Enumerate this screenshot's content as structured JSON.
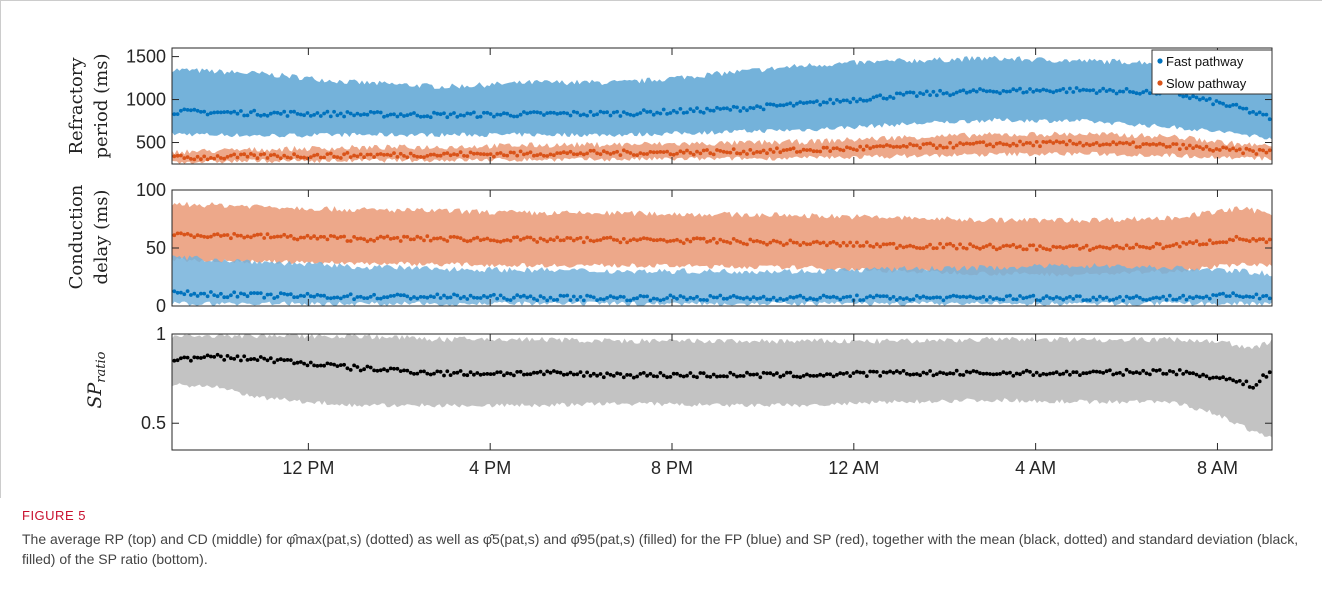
{
  "figure": {
    "label": "FIGURE 5",
    "caption": "The average RP (top) and CD (middle) for φ̂max(pat,s) (dotted) as well as φ̂5(pat,s) and φ̂95(pat,s) (filled) for the FP (blue) and SP (red), together with the mean (black, dotted) and standard deviation (black, filled) of the SP ratio (bottom)."
  },
  "chart_data": [
    {
      "type": "scatter",
      "ylabel": "Refractory period (ms)",
      "ylim": [
        250,
        1600
      ],
      "yticks": [
        500,
        1000,
        1500
      ],
      "xlim": [
        9,
        33.2
      ],
      "x_unit": "hours",
      "xticks": [
        12,
        16,
        20,
        24,
        28,
        32
      ],
      "xtick_labels": [
        "12 PM",
        "4 PM",
        "8 PM",
        "12 AM",
        "4 AM",
        "8 AM"
      ],
      "legend": {
        "placement": "top-right",
        "entries": [
          "Fast pathway",
          "Slow pathway"
        ]
      },
      "series": [
        {
          "name": "Fast pathway",
          "color": "#0072BD",
          "band_color": "#74b2da",
          "x": [
            9,
            11,
            13,
            15,
            17,
            19,
            21,
            23,
            25,
            27,
            29,
            31,
            32.5,
            33.2
          ],
          "mean": [
            860,
            840,
            830,
            820,
            830,
            840,
            880,
            950,
            1050,
            1100,
            1110,
            1080,
            900,
            780
          ],
          "low": [
            600,
            580,
            590,
            590,
            590,
            590,
            620,
            650,
            710,
            760,
            750,
            680,
            600,
            550
          ],
          "high": [
            1350,
            1300,
            1200,
            1150,
            1200,
            1200,
            1300,
            1400,
            1450,
            1480,
            1450,
            1430,
            1300,
            1150
          ]
        },
        {
          "name": "Slow pathway",
          "color": "#D95319",
          "band_color": "#eda88a",
          "x": [
            9,
            11,
            13,
            15,
            17,
            19,
            21,
            23,
            25,
            27,
            29,
            31,
            32.5,
            33.2
          ],
          "mean": [
            320,
            340,
            350,
            360,
            370,
            380,
            390,
            410,
            450,
            480,
            490,
            460,
            400,
            390
          ],
          "low": [
            270,
            285,
            290,
            295,
            300,
            305,
            310,
            320,
            340,
            360,
            370,
            350,
            320,
            310
          ],
          "high": [
            390,
            420,
            440,
            450,
            470,
            480,
            490,
            510,
            560,
            590,
            600,
            570,
            480,
            460
          ]
        }
      ]
    },
    {
      "type": "scatter",
      "ylabel": "Conduction delay (ms)",
      "ylim": [
        0,
        100
      ],
      "yticks": [
        0,
        50,
        100
      ],
      "xlim": [
        9,
        33.2
      ],
      "xticks": [
        12,
        16,
        20,
        24,
        28,
        32
      ],
      "series": [
        {
          "name": "Slow pathway",
          "color": "#D95319",
          "band_color": "#eda88a",
          "x": [
            9,
            11,
            13,
            15,
            17,
            19,
            21,
            23,
            25,
            27,
            29,
            31,
            32.5,
            33.2
          ],
          "mean": [
            62,
            60,
            58,
            58,
            57,
            57,
            56,
            54,
            52,
            51,
            50,
            52,
            58,
            55
          ],
          "low": [
            40,
            38,
            37,
            36,
            35,
            35,
            34,
            33,
            30,
            28,
            27,
            30,
            36,
            34
          ],
          "high": [
            88,
            86,
            83,
            82,
            80,
            80,
            79,
            78,
            76,
            74,
            74,
            76,
            84,
            80
          ]
        },
        {
          "name": "Fast pathway",
          "color": "#0072BD",
          "band_color": "#74b2da",
          "x": [
            9,
            11,
            13,
            15,
            17,
            19,
            21,
            23,
            25,
            27,
            29,
            31,
            32.5,
            33.2
          ],
          "mean": [
            11,
            9,
            8,
            8,
            7,
            7,
            7,
            7,
            7,
            7,
            7,
            7,
            9,
            8
          ],
          "low": [
            2,
            2,
            2,
            2,
            2,
            2,
            2,
            2,
            2,
            2,
            2,
            2,
            2,
            2
          ],
          "high": [
            42,
            38,
            34,
            32,
            31,
            30,
            30,
            30,
            32,
            33,
            35,
            33,
            30,
            28
          ]
        }
      ]
    },
    {
      "type": "scatter",
      "ylabel": "SP ratio",
      "ylim": [
        0.35,
        1.0
      ],
      "yticks": [
        0.5,
        1
      ],
      "ytick_labels": [
        "0.5",
        "1"
      ],
      "xlim": [
        9,
        33.2
      ],
      "xticks": [
        12,
        16,
        20,
        24,
        28,
        32
      ],
      "xtick_labels": [
        "12 PM",
        "4 PM",
        "8 PM",
        "12 AM",
        "4 AM",
        "8 AM"
      ],
      "series": [
        {
          "name": "SP ratio",
          "color": "#000000",
          "band_color": "#c3c3c3",
          "x": [
            9,
            10,
            11,
            13,
            15,
            17,
            19,
            21,
            23,
            25,
            27,
            29,
            31,
            32,
            32.8,
            33.2
          ],
          "mean": [
            0.86,
            0.87,
            0.86,
            0.81,
            0.78,
            0.78,
            0.77,
            0.77,
            0.77,
            0.78,
            0.78,
            0.78,
            0.79,
            0.76,
            0.71,
            0.8
          ],
          "low": [
            0.72,
            0.7,
            0.64,
            0.6,
            0.6,
            0.6,
            0.61,
            0.6,
            0.6,
            0.62,
            0.63,
            0.62,
            0.62,
            0.55,
            0.45,
            0.42
          ],
          "high": [
            0.99,
            0.99,
            0.99,
            0.99,
            0.97,
            0.97,
            0.96,
            0.96,
            0.96,
            0.96,
            0.97,
            0.97,
            0.97,
            0.96,
            0.92,
            0.96
          ]
        }
      ]
    }
  ]
}
